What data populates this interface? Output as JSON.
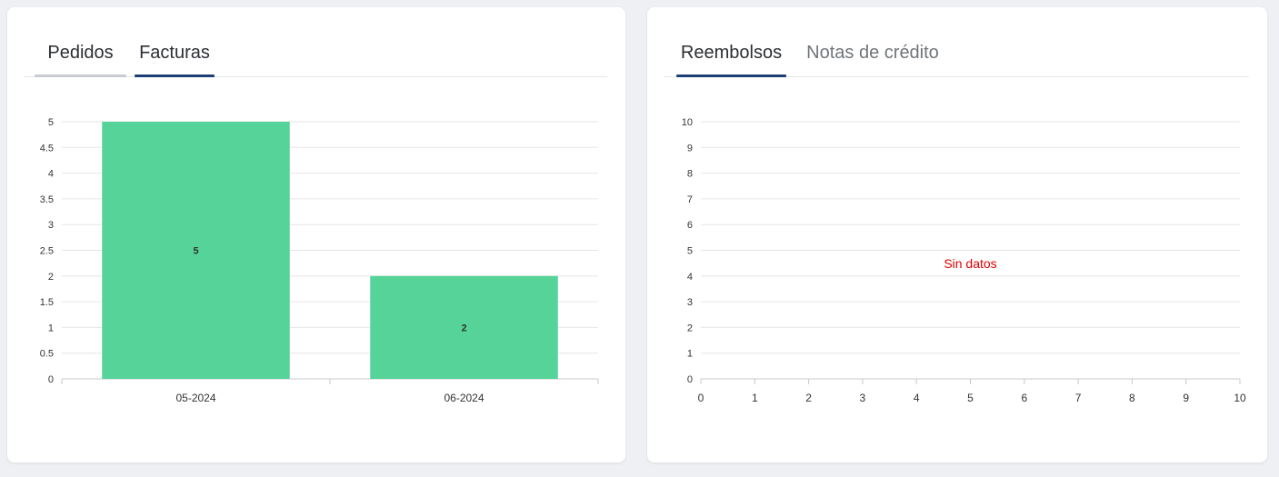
{
  "left_card": {
    "tabs": [
      {
        "label": "Pedidos",
        "active": false
      },
      {
        "label": "Facturas",
        "active": true
      }
    ],
    "chart_data": {
      "type": "bar",
      "categories": [
        "05-2024",
        "06-2024"
      ],
      "values": [
        5,
        2
      ],
      "data_labels": [
        "5",
        "2"
      ],
      "title": "",
      "xlabel": "",
      "ylabel": "",
      "ylim": [
        0,
        5
      ],
      "yticks": [
        "0",
        "0.5",
        "1",
        "1.5",
        "2",
        "2.5",
        "3",
        "3.5",
        "4",
        "4.5",
        "5"
      ],
      "grid": true,
      "bar_color": "#55d399"
    }
  },
  "right_card": {
    "tabs": [
      {
        "label": "Reembolsos",
        "active": true
      },
      {
        "label": "Notas de crédito",
        "active": false
      }
    ],
    "chart_data": {
      "type": "line",
      "series": [],
      "title": "",
      "xlabel": "",
      "ylabel": "",
      "xlim": [
        0,
        10
      ],
      "ylim": [
        0,
        10
      ],
      "xticks": [
        "0",
        "1",
        "2",
        "3",
        "4",
        "5",
        "6",
        "7",
        "8",
        "9",
        "10"
      ],
      "yticks": [
        "0",
        "1",
        "2",
        "3",
        "4",
        "5",
        "6",
        "7",
        "8",
        "9",
        "10"
      ],
      "grid": true,
      "empty_message": "Sin datos",
      "empty_message_color": "#e00000"
    }
  },
  "colors": {
    "tab_active_underline": "#1c3f73",
    "tab_inactive_underline": "#c9cbce",
    "gridline": "#e6e6e6",
    "axis": "#c8c8c8",
    "tick_text": "#333333"
  }
}
